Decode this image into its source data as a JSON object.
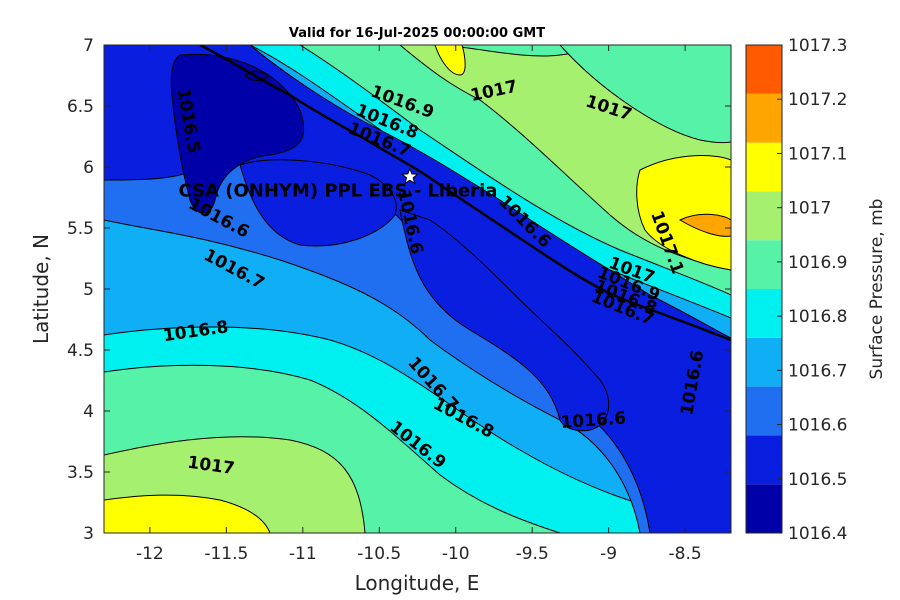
{
  "chart_data": {
    "type": "contour",
    "title": "Valid for 16-Jul-2025 00:00:00 GMT",
    "xlabel": "Longitude, E",
    "ylabel": "Latitude, N",
    "colorbar_label": "Surface Pressure, mb",
    "xlim": [
      -12.3,
      -8.2
    ],
    "ylim": [
      3,
      7
    ],
    "xticks": [
      -12,
      -11.5,
      -11,
      -10.5,
      -10,
      -9.5,
      -9,
      -8.5
    ],
    "xtick_labels": [
      "-12",
      "-11.5",
      "-11",
      "-10.5",
      "-10",
      "-9.5",
      "-9",
      "-8.5"
    ],
    "yticks": [
      3,
      3.5,
      4,
      4.5,
      5,
      5.5,
      6,
      6.5,
      7
    ],
    "ytick_labels": [
      "3",
      "3.5",
      "4",
      "4.5",
      "5",
      "5.5",
      "6",
      "6.5",
      "7"
    ],
    "levels": [
      1016.4,
      1016.5,
      1016.6,
      1016.7,
      1016.8,
      1016.9,
      1017,
      1017.1,
      1017.2,
      1017.3
    ],
    "level_labels": [
      "1016.4",
      "1016.5",
      "1016.6",
      "1016.7",
      "1016.8",
      "1016.9",
      "1017",
      "1017.1",
      "1017.2",
      "1017.3"
    ],
    "colors": [
      "#0000a8",
      "#0a1ee0",
      "#1f6ff0",
      "#10aef5",
      "#00f0f0",
      "#55f2a8",
      "#a6f070",
      "#ffff00",
      "#ffa500",
      "#ff5a00"
    ],
    "site": {
      "name": "CSA (ONHYM) PPL EBS  - Liberia",
      "lon": -10.3,
      "lat": 5.92
    },
    "contour_labels": [
      {
        "text": "1016.5",
        "lon": -11.75,
        "lat": 6.38,
        "rot": 80
      },
      {
        "text": "1016.6",
        "lon": -11.55,
        "lat": 5.58,
        "rot": 28
      },
      {
        "text": "1016.7",
        "lon": -11.45,
        "lat": 5.16,
        "rot": 28
      },
      {
        "text": "1016.8",
        "lon": -11.7,
        "lat": 4.65,
        "rot": -8
      },
      {
        "text": "1017",
        "lon": -11.6,
        "lat": 3.55,
        "rot": 8
      },
      {
        "text": "1016.9",
        "lon": -10.35,
        "lat": 6.53,
        "rot": 20
      },
      {
        "text": "1016.8",
        "lon": -10.45,
        "lat": 6.37,
        "rot": 22
      },
      {
        "text": "1016.7",
        "lon": -10.5,
        "lat": 6.22,
        "rot": 22
      },
      {
        "text": "1017",
        "lon": -9.75,
        "lat": 6.62,
        "rot": -12
      },
      {
        "text": "1017",
        "lon": -9.0,
        "lat": 6.48,
        "rot": 18
      },
      {
        "text": "1016.6",
        "lon": -10.3,
        "lat": 5.55,
        "rot": 78
      },
      {
        "text": "1016.6",
        "lon": -9.55,
        "lat": 5.55,
        "rot": 45
      },
      {
        "text": "1017.1",
        "lon": -8.62,
        "lat": 5.38,
        "rot": 70
      },
      {
        "text": "1017",
        "lon": -8.85,
        "lat": 5.15,
        "rot": 20
      },
      {
        "text": "1016.9",
        "lon": -8.87,
        "lat": 5.04,
        "rot": 22
      },
      {
        "text": "1016.8",
        "lon": -8.89,
        "lat": 4.93,
        "rot": 22
      },
      {
        "text": "1016.7",
        "lon": -8.91,
        "lat": 4.84,
        "rot": 22
      },
      {
        "text": "1016.7",
        "lon": -10.15,
        "lat": 4.22,
        "rot": 48
      },
      {
        "text": "1016.8",
        "lon": -9.95,
        "lat": 3.94,
        "rot": 28
      },
      {
        "text": "1016.9",
        "lon": -10.25,
        "lat": 3.72,
        "rot": 38
      },
      {
        "text": "1016.6",
        "lon": -9.1,
        "lat": 3.92,
        "rot": -4
      },
      {
        "text": "1016.6",
        "lon": -8.45,
        "lat": 4.23,
        "rot": -80
      }
    ]
  }
}
